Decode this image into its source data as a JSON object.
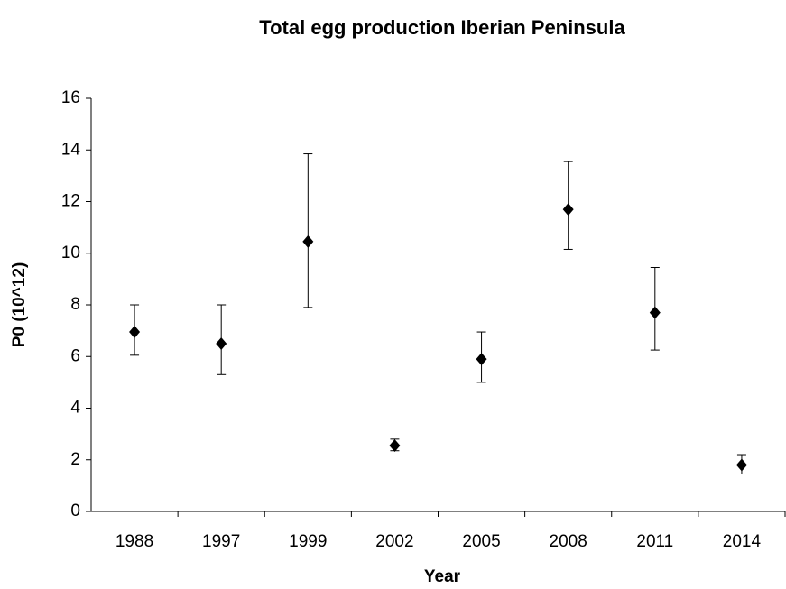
{
  "chart_data": {
    "type": "scatter",
    "title": "Total egg production Iberian Peninsula",
    "x_label": "Year",
    "y_label": "P0 (10^12)",
    "categories": [
      "1988",
      "1997",
      "1999",
      "2002",
      "2005",
      "2008",
      "2011",
      "2014"
    ],
    "values": [
      6.95,
      6.5,
      10.45,
      2.55,
      5.9,
      11.7,
      7.7,
      1.8
    ],
    "lower": [
      6.05,
      5.3,
      7.9,
      2.35,
      5.0,
      10.15,
      6.25,
      1.45
    ],
    "upper": [
      8.0,
      8.0,
      13.85,
      2.8,
      6.95,
      13.55,
      9.45,
      2.2
    ],
    "color": "#000000",
    "ylim": [
      0,
      16
    ],
    "yticks": [
      0,
      2,
      4,
      6,
      8,
      10,
      12,
      14,
      16
    ],
    "grid": false
  }
}
